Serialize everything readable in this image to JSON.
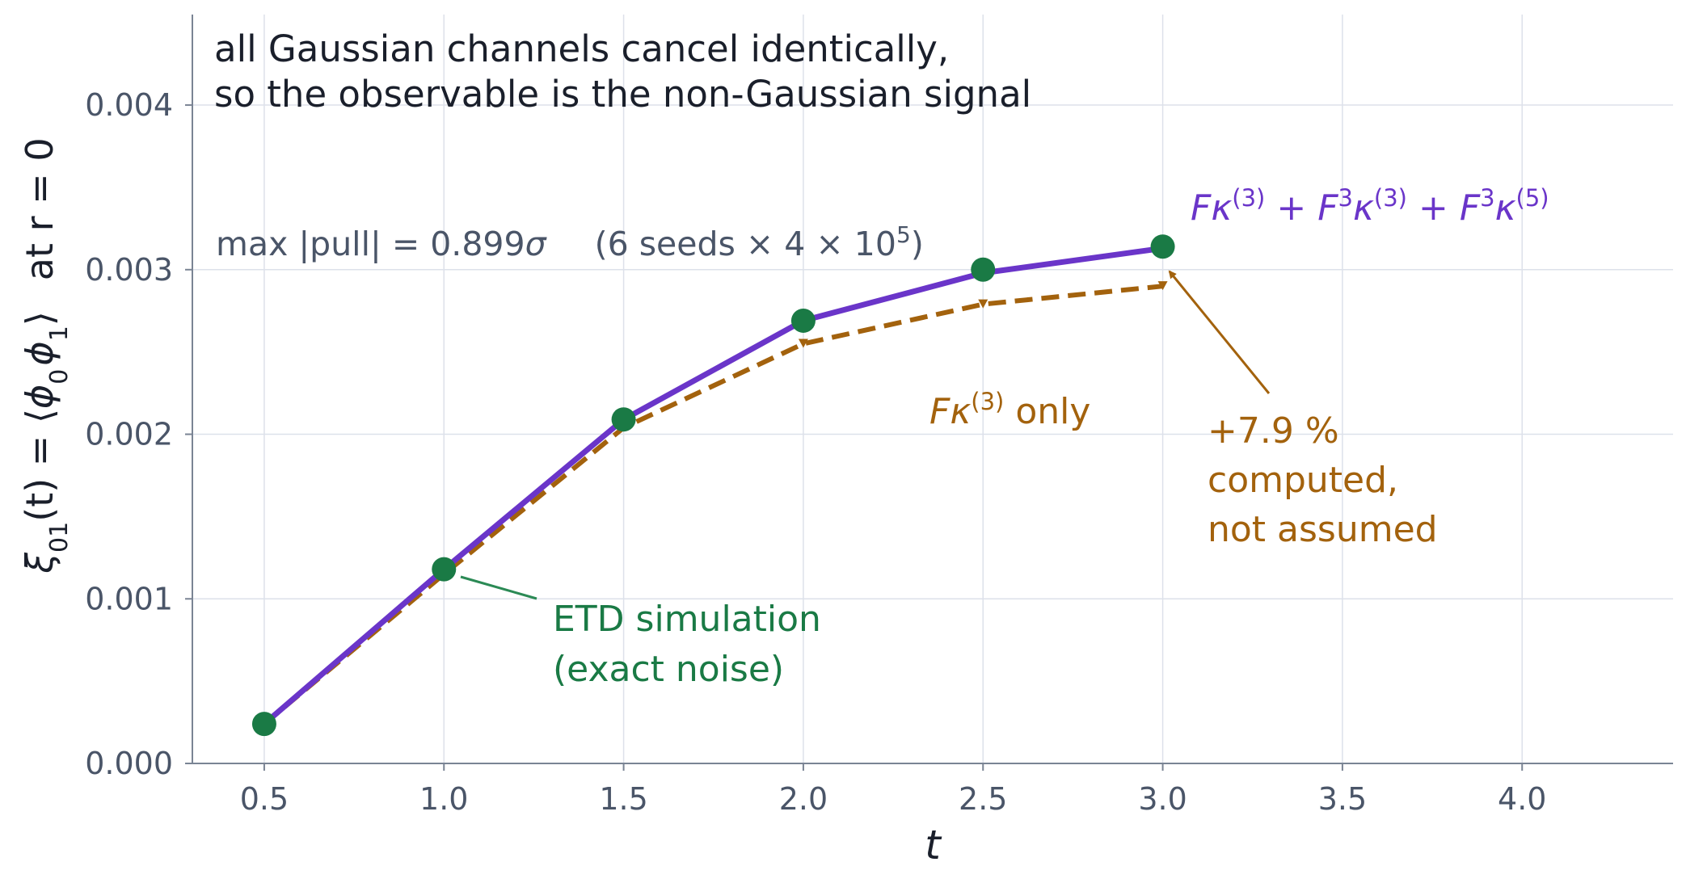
{
  "chart_data": {
    "type": "line",
    "title": "",
    "xlabel": "t",
    "ylabel": {
      "xi": "ξ",
      "sub01": "01",
      "eq": "(t) = ⟨",
      "phi": "ϕ",
      "sub0": "0",
      "sub1": "1",
      "close": "⟩",
      "at_r": "at r = 0"
    },
    "xlim": [
      0.3,
      4.42
    ],
    "ylim": [
      0.0,
      0.00455
    ],
    "grid": true,
    "x_ticks": [
      0.5,
      1.0,
      1.5,
      2.0,
      2.5,
      3.0,
      3.5,
      4.0
    ],
    "x_tick_labels": [
      "0.5",
      "1.0",
      "1.5",
      "2.0",
      "2.5",
      "3.0",
      "3.5",
      "4.0"
    ],
    "y_ticks": [
      0.0,
      0.001,
      0.002,
      0.003,
      0.004
    ],
    "y_tick_labels": [
      "0.000",
      "0.001",
      "0.002",
      "0.003",
      "0.004"
    ],
    "series": [
      {
        "name": "Fκ(3) + F3κ(3) + F3κ(5)",
        "style": "solid",
        "color": "#6a35c9",
        "x": [
          0.5,
          1.0,
          1.5,
          2.0,
          2.5,
          3.0
        ],
        "y": [
          0.00024,
          0.00118,
          0.00209,
          0.00269,
          0.00298,
          0.00313
        ]
      },
      {
        "name": "Fκ(3) only",
        "style": "dashed",
        "color": "#a3620d",
        "x": [
          0.5,
          1.0,
          1.5,
          2.0,
          2.5,
          3.0
        ],
        "y": [
          0.00024,
          0.00115,
          0.00204,
          0.00255,
          0.00279,
          0.0029
        ]
      },
      {
        "name": "ETD simulation (exact noise)",
        "style": "markers",
        "color": "#1a7a45",
        "x": [
          0.5,
          1.0,
          1.5,
          2.0,
          2.5,
          3.0
        ],
        "y": [
          0.00024,
          0.00118,
          0.00209,
          0.00269,
          0.003,
          0.00314
        ]
      }
    ],
    "annotations": {
      "headline": [
        "all Gaussian channels cancel identically,",
        "so the observable is the non-Gaussian signal"
      ],
      "pull": {
        "prefix": "max |pull| = 0.899",
        "sigma": "σ",
        "seeds": "(6 seeds × 4 × 10",
        "exp": "5",
        "close": ")"
      },
      "full_label": {
        "F": "F",
        "k": "κ",
        "s3": "(3)",
        "plus": " + ",
        "cube": "3",
        "s5": "(5)"
      },
      "only_label": {
        "F": "F",
        "k": "κ",
        "s3": "(3)",
        "text": " only"
      },
      "percent": [
        "+7.9 %",
        "computed,",
        "not assumed"
      ],
      "sim": [
        "ETD simulation",
        "(exact noise)"
      ]
    }
  },
  "colors": {
    "purple": "#6a35c9",
    "orange": "#a3620d",
    "green": "#1a7a45",
    "grid": "#dde1ea",
    "axis": "#7a8494",
    "text_dark": "#1a1f2b",
    "text_gray": "#4a5568"
  }
}
